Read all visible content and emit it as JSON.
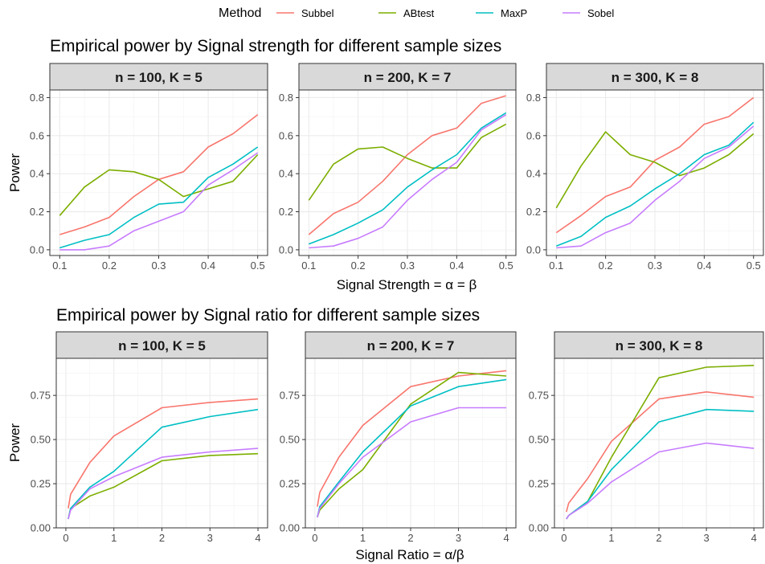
{
  "legend": {
    "title": "Method",
    "items": [
      {
        "label": "Subbel",
        "color": "#F8766D"
      },
      {
        "label": "ABtest",
        "color": "#7CAE00"
      },
      {
        "label": "MaxP",
        "color": "#00BFC4"
      },
      {
        "label": "Sobel",
        "color": "#C77CFF"
      }
    ]
  },
  "chart_data": [
    {
      "type": "line",
      "title": "Empirical power by Signal strength for different sample sizes",
      "xlabel": "Signal Strength = α = β",
      "ylabel": "Power",
      "xlim": [
        0.08,
        0.52
      ],
      "ylim": [
        -0.03,
        0.84
      ],
      "xticks": [
        0.1,
        0.2,
        0.3,
        0.4,
        0.5
      ],
      "xtick_labels": [
        "0.1",
        "0.2",
        "0.3",
        "0.4",
        "0.5"
      ],
      "yticks": [
        0,
        0.2,
        0.4,
        0.6,
        0.8
      ],
      "ytick_labels": [
        "0.0",
        "0.2",
        "0.4",
        "0.6",
        "0.8"
      ],
      "x": [
        0.1,
        0.15,
        0.2,
        0.25,
        0.3,
        0.35,
        0.4,
        0.45,
        0.5
      ],
      "panels": [
        {
          "label": "n = 100, K = 5",
          "series": [
            {
              "name": "Subbel",
              "values": [
                0.08,
                0.12,
                0.17,
                0.28,
                0.37,
                0.41,
                0.54,
                0.61,
                0.71
              ]
            },
            {
              "name": "ABtest",
              "values": [
                0.18,
                0.33,
                0.42,
                0.41,
                0.37,
                0.28,
                0.32,
                0.36,
                0.5
              ]
            },
            {
              "name": "MaxP",
              "values": [
                0.01,
                0.05,
                0.08,
                0.17,
                0.24,
                0.25,
                0.38,
                0.45,
                0.54
              ]
            },
            {
              "name": "Sobel",
              "values": [
                0.0,
                0.0,
                0.02,
                0.1,
                0.15,
                0.2,
                0.34,
                0.42,
                0.51
              ]
            }
          ]
        },
        {
          "label": "n = 200, K = 7",
          "series": [
            {
              "name": "Subbel",
              "values": [
                0.08,
                0.19,
                0.25,
                0.36,
                0.5,
                0.6,
                0.64,
                0.77,
                0.81
              ]
            },
            {
              "name": "ABtest",
              "values": [
                0.26,
                0.45,
                0.53,
                0.54,
                0.48,
                0.43,
                0.43,
                0.59,
                0.66
              ]
            },
            {
              "name": "MaxP",
              "values": [
                0.03,
                0.08,
                0.14,
                0.21,
                0.33,
                0.42,
                0.5,
                0.64,
                0.72
              ]
            },
            {
              "name": "Sobel",
              "values": [
                0.01,
                0.02,
                0.06,
                0.12,
                0.26,
                0.37,
                0.46,
                0.63,
                0.71
              ]
            }
          ]
        },
        {
          "label": "n = 300, K = 8",
          "series": [
            {
              "name": "Subbel",
              "values": [
                0.09,
                0.18,
                0.28,
                0.33,
                0.47,
                0.54,
                0.66,
                0.7,
                0.8
              ]
            },
            {
              "name": "ABtest",
              "values": [
                0.22,
                0.44,
                0.62,
                0.5,
                0.46,
                0.39,
                0.43,
                0.5,
                0.61
              ]
            },
            {
              "name": "MaxP",
              "values": [
                0.02,
                0.07,
                0.17,
                0.23,
                0.32,
                0.4,
                0.5,
                0.55,
                0.67
              ]
            },
            {
              "name": "Sobel",
              "values": [
                0.01,
                0.02,
                0.09,
                0.14,
                0.26,
                0.36,
                0.48,
                0.54,
                0.65
              ]
            }
          ]
        }
      ]
    },
    {
      "type": "line",
      "title": "Empirical power by Signal ratio for different sample sizes",
      "xlabel": "Signal Ratio = α/β",
      "ylabel": "Power",
      "xlim": [
        -0.2,
        4.2
      ],
      "ylim": [
        0.0,
        0.96
      ],
      "xticks": [
        0,
        1,
        2,
        3,
        4
      ],
      "xtick_labels": [
        "0",
        "1",
        "2",
        "3",
        "4"
      ],
      "yticks": [
        0,
        0.25,
        0.5,
        0.75
      ],
      "ytick_labels": [
        "0.00",
        "0.25",
        "0.50",
        "0.75"
      ],
      "x": [
        0.05,
        0.1,
        0.5,
        1,
        2,
        3,
        4
      ],
      "panels": [
        {
          "label": "n = 100, K = 5",
          "series": [
            {
              "name": "Subbel",
              "values": [
                0.11,
                0.19,
                0.37,
                0.52,
                0.68,
                0.71,
                0.73
              ]
            },
            {
              "name": "ABtest",
              "values": [
                0.05,
                0.11,
                0.18,
                0.23,
                0.38,
                0.41,
                0.42
              ]
            },
            {
              "name": "MaxP",
              "values": [
                0.05,
                0.11,
                0.23,
                0.32,
                0.57,
                0.63,
                0.67
              ]
            },
            {
              "name": "Sobel",
              "values": [
                0.05,
                0.1,
                0.22,
                0.29,
                0.4,
                0.43,
                0.45
              ]
            }
          ]
        },
        {
          "label": "n = 200, K = 7",
          "series": [
            {
              "name": "Subbel",
              "values": [
                0.12,
                0.2,
                0.4,
                0.58,
                0.8,
                0.86,
                0.89
              ]
            },
            {
              "name": "ABtest",
              "values": [
                0.06,
                0.1,
                0.22,
                0.33,
                0.7,
                0.88,
                0.86
              ]
            },
            {
              "name": "MaxP",
              "values": [
                0.06,
                0.12,
                0.26,
                0.43,
                0.69,
                0.8,
                0.84
              ]
            },
            {
              "name": "Sobel",
              "values": [
                0.06,
                0.11,
                0.25,
                0.4,
                0.6,
                0.68,
                0.68
              ]
            }
          ]
        },
        {
          "label": "n = 300, K = 8",
          "series": [
            {
              "name": "Subbel",
              "values": [
                0.09,
                0.14,
                0.28,
                0.49,
                0.73,
                0.77,
                0.74
              ]
            },
            {
              "name": "ABtest",
              "values": [
                0.05,
                0.07,
                0.15,
                0.4,
                0.85,
                0.91,
                0.92
              ]
            },
            {
              "name": "MaxP",
              "values": [
                0.05,
                0.07,
                0.15,
                0.33,
                0.6,
                0.67,
                0.66
              ]
            },
            {
              "name": "Sobel",
              "values": [
                0.05,
                0.07,
                0.14,
                0.26,
                0.43,
                0.48,
                0.45
              ]
            }
          ]
        }
      ]
    }
  ]
}
